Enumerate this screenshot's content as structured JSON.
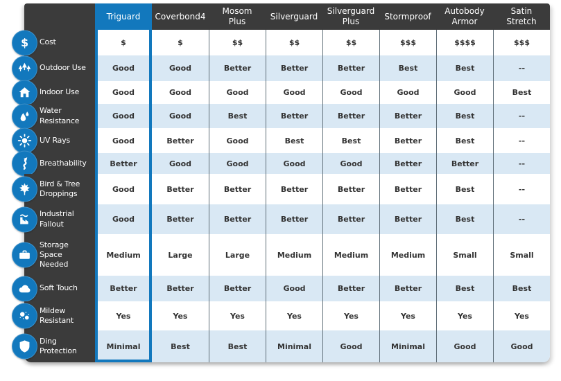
{
  "table": {
    "highlighted_column": "Triguard",
    "columns": [
      "Triguard",
      "Coverbond4",
      "Mosom\nPlus",
      "Silverguard",
      "Silverguard\nPlus",
      "Stormproof",
      "Autobody\nArmor",
      "Satin\nStretch"
    ],
    "rows": [
      {
        "label": "Cost",
        "icon": "dollar-icon",
        "values": [
          "$",
          "$",
          "$$",
          "$$",
          "$$",
          "$$$",
          "$$$$",
          "$$$"
        ]
      },
      {
        "label": "Outdoor Use",
        "icon": "trees-icon",
        "values": [
          "Good",
          "Good",
          "Better",
          "Better",
          "Better",
          "Best",
          "Best",
          "--"
        ]
      },
      {
        "label": "Indoor Use",
        "icon": "house-icon",
        "values": [
          "Good",
          "Good",
          "Good",
          "Good",
          "Good",
          "Good",
          "Good",
          "Best"
        ]
      },
      {
        "label": "Water\nResistance",
        "icon": "water-drops-icon",
        "values": [
          "Good",
          "Good",
          "Best",
          "Better",
          "Better",
          "Better",
          "Best",
          "--"
        ]
      },
      {
        "label": "UV Rays",
        "icon": "sun-icon",
        "values": [
          "Good",
          "Better",
          "Good",
          "Best",
          "Best",
          "Better",
          "Best",
          "--"
        ]
      },
      {
        "label": "Breathability",
        "icon": "airflow-icon",
        "values": [
          "Better",
          "Good",
          "Good",
          "Good",
          "Good",
          "Better",
          "Better",
          "--"
        ]
      },
      {
        "label": "Bird & Tree\nDroppings",
        "icon": "maple-leaf-icon",
        "values": [
          "Good",
          "Better",
          "Better",
          "Better",
          "Better",
          "Better",
          "Best",
          "--"
        ]
      },
      {
        "label": "Industrial\nFallout",
        "icon": "factory-icon",
        "values": [
          "Good",
          "Better",
          "Better",
          "Better",
          "Better",
          "Better",
          "Best",
          "--"
        ]
      },
      {
        "label": "Storage\nSpace\nNeeded",
        "icon": "suitcase-icon",
        "values": [
          "Medium",
          "Large",
          "Large",
          "Medium",
          "Medium",
          "Medium",
          "Small",
          "Small"
        ]
      },
      {
        "label": "Soft Touch",
        "icon": "cloud-icon",
        "values": [
          "Better",
          "Better",
          "Better",
          "Good",
          "Better",
          "Better",
          "Best",
          "Best"
        ]
      },
      {
        "label": "Mildew\nResistant",
        "icon": "spores-icon",
        "values": [
          "Yes",
          "Yes",
          "Yes",
          "Yes",
          "Yes",
          "Yes",
          "Yes",
          "Yes"
        ]
      },
      {
        "label": "Ding\nProtection",
        "icon": "shield-icon",
        "values": [
          "Minimal",
          "Best",
          "Best",
          "Minimal",
          "Good",
          "Minimal",
          "Good",
          "Good"
        ]
      }
    ],
    "colors": {
      "accent_blue": "#1278bd",
      "panel_dark": "#3b3b3b",
      "stripe_light_blue": "#d9e8f4",
      "cell_text": "#333333",
      "separator": "#5d6c76"
    }
  }
}
